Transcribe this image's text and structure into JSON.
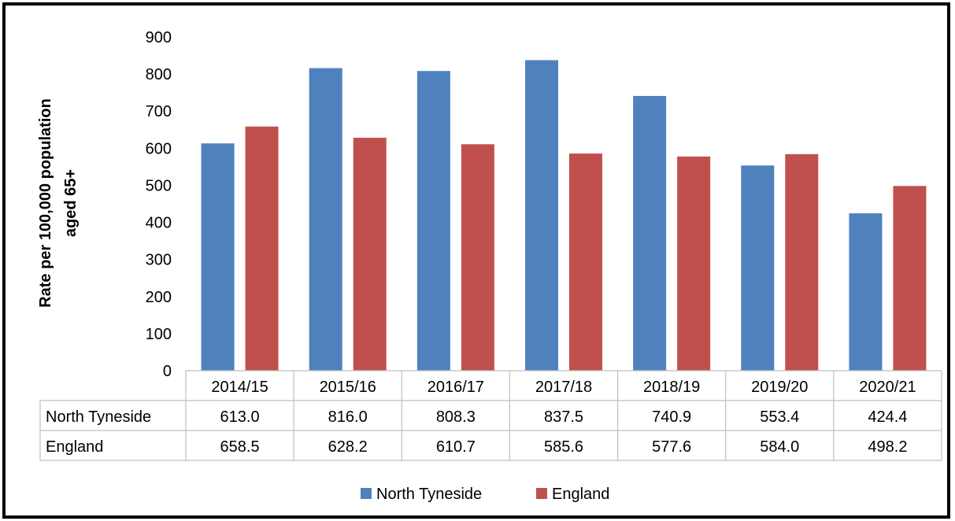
{
  "chart_data": {
    "type": "bar",
    "categories": [
      "2014/15",
      "2015/16",
      "2016/17",
      "2017/18",
      "2018/19",
      "2019/20",
      "2020/21"
    ],
    "series": [
      {
        "name": "North Tyneside",
        "color": "#4F81BD",
        "values": [
          613.0,
          816.0,
          808.3,
          837.5,
          740.9,
          553.4,
          424.4
        ],
        "labels": [
          "613.0",
          "816.0",
          "808.3",
          "837.5",
          "740.9",
          "553.4",
          "424.4"
        ]
      },
      {
        "name": "England",
        "color": "#C0504D",
        "values": [
          658.5,
          628.2,
          610.7,
          585.6,
          577.6,
          584.0,
          498.2
        ],
        "labels": [
          "658.5",
          "628.2",
          "610.7",
          "585.6",
          "577.6",
          "584.0",
          "498.2"
        ]
      }
    ],
    "ylabel_lines": [
      "Rate per 100,000 population",
      "aged 65+"
    ],
    "ylim": [
      0,
      900
    ],
    "yticks": [
      "0",
      "100",
      "200",
      "300",
      "400",
      "500",
      "600",
      "700",
      "800",
      "900"
    ],
    "grid": false,
    "data_table": true,
    "legend_position": "bottom"
  }
}
